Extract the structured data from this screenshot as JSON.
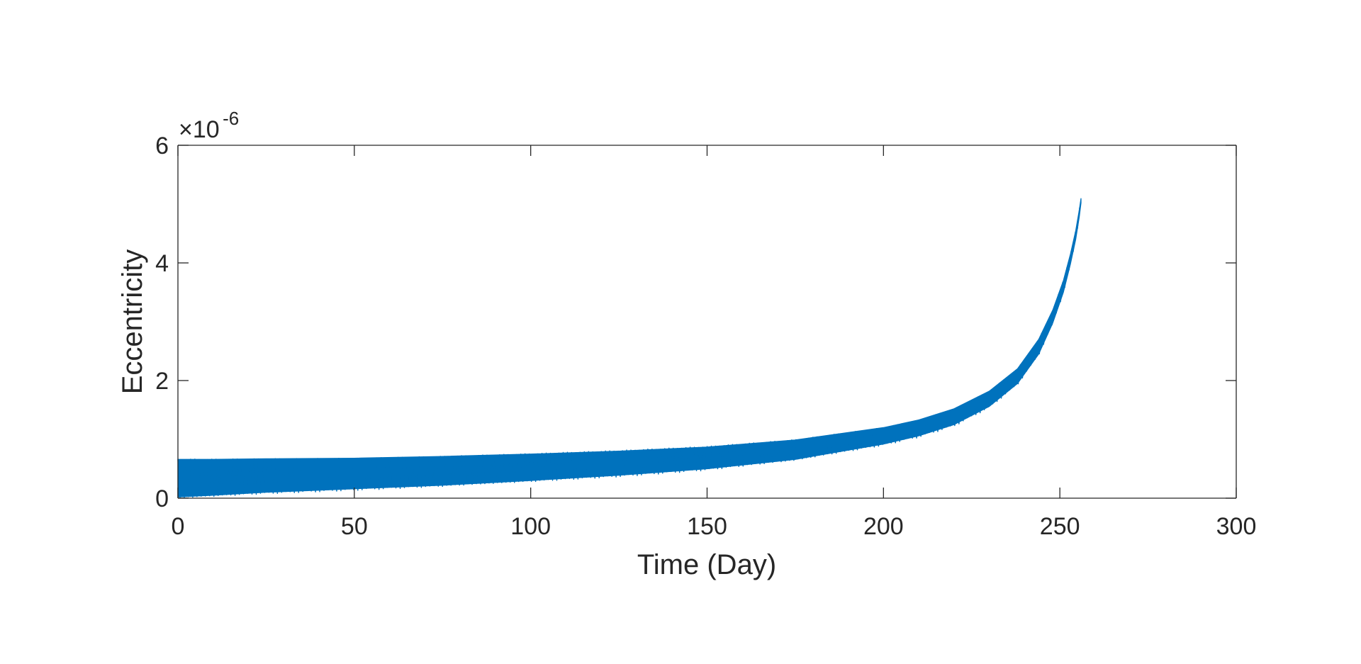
{
  "chart_data": {
    "type": "area",
    "title": "",
    "xlabel": "Time (Day)",
    "ylabel": "Eccentricity",
    "xlim": [
      0,
      300
    ],
    "ylim": [
      0,
      6
    ],
    "x_ticks": [
      0,
      50,
      100,
      150,
      200,
      250,
      300
    ],
    "y_ticks": [
      0,
      2,
      4,
      6
    ],
    "x_tick_labels": [
      "0",
      "50",
      "100",
      "150",
      "200",
      "250",
      "300"
    ],
    "y_tick_labels": [
      "0",
      "2",
      "4",
      "6"
    ],
    "y_multiplier": {
      "base": "×10",
      "exponent": "-6"
    },
    "grid": false,
    "legend": "none",
    "color": "#0072BD",
    "series": [
      {
        "description_kind": "oscillation envelope (upper and lower bounds)",
        "x": [
          0,
          10,
          25,
          50,
          75,
          100,
          125,
          150,
          175,
          200,
          210,
          220,
          230,
          238,
          244,
          248,
          251,
          253,
          254.5,
          255.5,
          256
        ],
        "upper": [
          0.66,
          0.66,
          0.67,
          0.68,
          0.71,
          0.75,
          0.8,
          0.87,
          0.99,
          1.2,
          1.33,
          1.52,
          1.82,
          2.2,
          2.7,
          3.2,
          3.7,
          4.15,
          4.55,
          4.9,
          5.1
        ],
        "lower": [
          0.02,
          0.05,
          0.1,
          0.16,
          0.22,
          0.3,
          0.39,
          0.5,
          0.66,
          0.92,
          1.06,
          1.25,
          1.56,
          1.95,
          2.45,
          2.98,
          3.5,
          3.98,
          4.4,
          4.78,
          5.02
        ]
      }
    ]
  }
}
